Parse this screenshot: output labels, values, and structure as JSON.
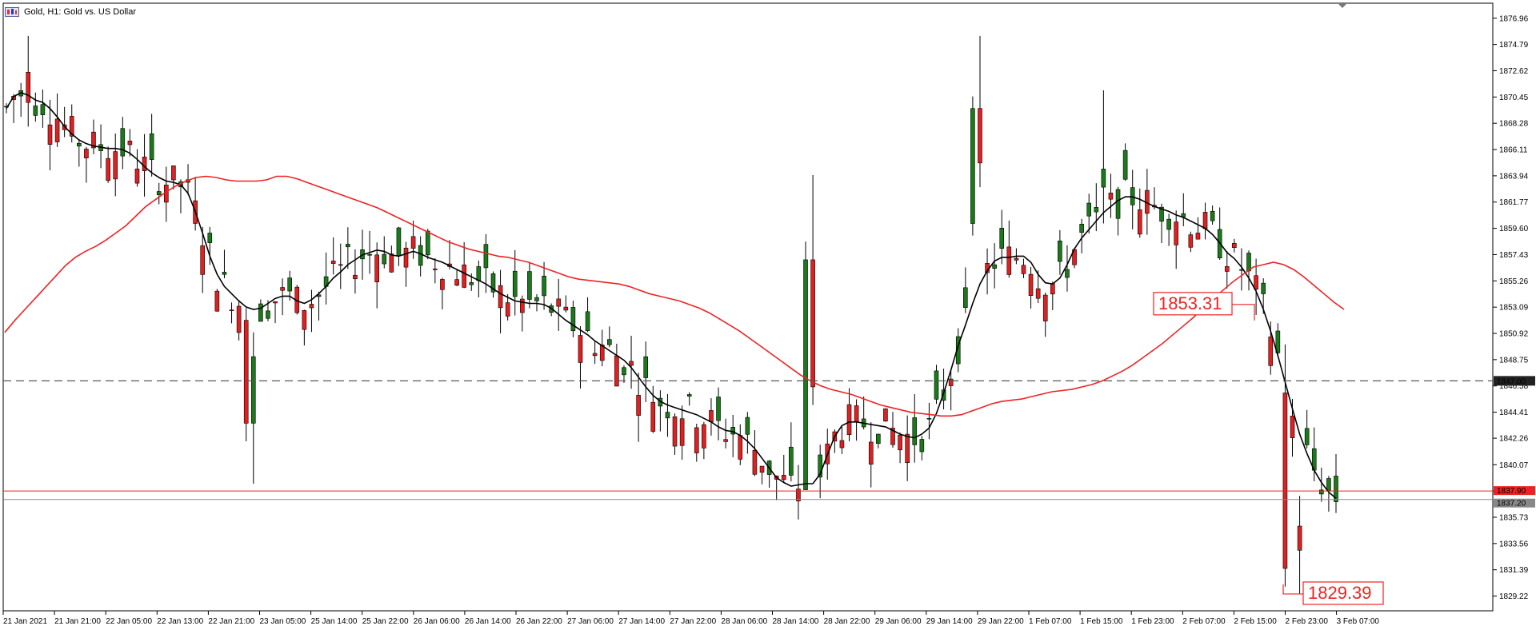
{
  "window": {
    "title": "Gold, H1:  Gold vs. US Dollar",
    "icon": "chart-window-icon"
  },
  "colors": {
    "background": "#ffffff",
    "bull_candle": "#1a7a1a",
    "bear_candle": "#e02020",
    "wick": "#000000",
    "ma_fast": "#000000",
    "ma_slow": "#ee2222",
    "level_line": "#555555",
    "bid_line": "#ee2222",
    "ask_line": "#888888",
    "axis": "#000000"
  },
  "axis": {
    "price_ticks": [
      "1876.96",
      "1874.79",
      "1872.62",
      "1870.45",
      "1868.28",
      "1866.11",
      "1863.94",
      "1861.77",
      "1859.60",
      "1857.43",
      "1855.26",
      "1853.09",
      "1850.92",
      "1848.75",
      "1846.58",
      "1844.41",
      "1842.26",
      "1840.07",
      "1837.90",
      "1835.73",
      "1833.56",
      "1831.39",
      "1829.22"
    ],
    "time_ticks": [
      "21 Jan 2021",
      "21 Jan 21:00",
      "22 Jan 05:00",
      "22 Jan 13:00",
      "22 Jan 21:00",
      "23 Jan 05:00",
      "25 Jan 14:00",
      "25 Jan 22:00",
      "26 Jan 06:00",
      "26 Jan 14:00",
      "26 Jan 22:00",
      "27 Jan 06:00",
      "27 Jan 14:00",
      "27 Jan 22:00",
      "28 Jan 06:00",
      "28 Jan 14:00",
      "28 Jan 22:00",
      "29 Jan 06:00",
      "29 Jan 14:00",
      "29 Jan 22:00",
      "1 Feb 07:00",
      "1 Feb 15:00",
      "1 Feb 23:00",
      "2 Feb 07:00",
      "2 Feb 15:00",
      "2 Feb 23:00",
      "3 Feb 07:00"
    ],
    "ylim": [
      1828.0,
      1878.2
    ]
  },
  "levels": {
    "horizontal_level": {
      "price": 1847.0,
      "label": "1847.00"
    },
    "bid": {
      "price": 1837.9,
      "label": "1837.90"
    },
    "ask": {
      "price": 1837.2,
      "label": "1837.20"
    }
  },
  "annotations": [
    {
      "label": "1853.31",
      "price": 1853.31
    },
    {
      "label": "1829.39",
      "price": 1829.39
    }
  ],
  "chart_data": {
    "type": "candlestick",
    "title": "Gold, H1:  Gold vs. US Dollar",
    "symbol": "Gold",
    "timeframe": "H1",
    "grid": false,
    "series": [
      {
        "name": "",
        "kind": "moving-average",
        "values": [
          1869.5,
          1870.5,
          1870.8,
          1870.6,
          1870.2,
          1870.0,
          1869.5,
          1868.8,
          1868.0,
          1867.4,
          1866.9,
          1866.6,
          1866.4,
          1866.3,
          1866.2,
          1866.2,
          1866.1,
          1865.8,
          1865.3,
          1864.7,
          1864.2,
          1863.8,
          1863.5,
          1863.4,
          1863.2,
          1862.5,
          1861.0,
          1859.2,
          1857.3,
          1855.8,
          1854.8,
          1854.2,
          1853.6,
          1853.1,
          1852.9,
          1853.0,
          1853.4,
          1853.8,
          1854.0,
          1854.0,
          1853.6,
          1853.4,
          1853.7,
          1854.2,
          1854.8,
          1855.5,
          1856.0,
          1856.6,
          1857.0,
          1857.4,
          1857.6,
          1857.8,
          1857.7,
          1857.4,
          1857.3,
          1857.5,
          1857.7,
          1857.5,
          1857.2,
          1857.0,
          1856.8,
          1856.5,
          1856.2,
          1855.9,
          1855.6,
          1855.3,
          1855.0,
          1854.6,
          1854.2,
          1853.9,
          1853.6,
          1853.5,
          1853.4,
          1853.4,
          1853.3,
          1853.0,
          1852.5,
          1852.0,
          1851.6,
          1851.2,
          1850.8,
          1850.3,
          1849.9,
          1849.5,
          1849.1,
          1848.7,
          1848.1,
          1847.3,
          1846.5,
          1845.8,
          1845.3,
          1845.0,
          1844.8,
          1844.6,
          1844.4,
          1844.2,
          1843.9,
          1843.6,
          1843.2,
          1842.9,
          1842.8,
          1842.5,
          1842.0,
          1841.4,
          1840.6,
          1839.8,
          1839.0,
          1838.6,
          1838.3,
          1838.4,
          1838.5,
          1838.5,
          1839.3,
          1840.9,
          1842.4,
          1843.3,
          1843.6,
          1843.6,
          1843.5,
          1843.4,
          1843.3,
          1843.2,
          1842.9,
          1842.6,
          1842.4,
          1842.3,
          1842.6,
          1843.1,
          1844.3,
          1846.0,
          1847.9,
          1849.9,
          1851.6,
          1853.4,
          1855.0,
          1856.1,
          1856.9,
          1857.2,
          1857.2,
          1857.3,
          1857.3,
          1856.8,
          1855.8,
          1855.1,
          1855.0,
          1855.5,
          1856.6,
          1857.9,
          1858.8,
          1859.5,
          1860.2,
          1860.9,
          1861.4,
          1861.9,
          1862.2,
          1862.2,
          1862.0,
          1861.7,
          1861.4,
          1861.2,
          1861.0,
          1860.7,
          1860.5,
          1860.2,
          1859.9,
          1859.6,
          1859.1,
          1858.4,
          1857.6,
          1857.1,
          1856.4,
          1855.5,
          1854.4,
          1852.9,
          1851.1,
          1849.1,
          1846.9,
          1844.7,
          1842.6,
          1841.0,
          1839.6,
          1838.6,
          1837.8,
          1837.3
        ]
      },
      {
        "name": "",
        "kind": "moving-average",
        "values": [
          1851.0,
          1852.0,
          1852.9,
          1853.8,
          1854.7,
          1855.6,
          1856.5,
          1857.2,
          1857.7,
          1858.1,
          1858.6,
          1859.2,
          1859.8,
          1860.6,
          1861.4,
          1862.0,
          1862.6,
          1863.1,
          1863.5,
          1863.8,
          1863.9,
          1863.8,
          1863.6,
          1863.5,
          1863.5,
          1863.5,
          1863.6,
          1863.9,
          1863.9,
          1863.7,
          1863.4,
          1863.1,
          1862.8,
          1862.5,
          1862.2,
          1861.9,
          1861.6,
          1861.3,
          1860.9,
          1860.5,
          1860.1,
          1859.7,
          1859.3,
          1858.9,
          1858.5,
          1858.2,
          1857.9,
          1857.7,
          1857.5,
          1857.3,
          1857.2,
          1857.0,
          1856.8,
          1856.5,
          1856.2,
          1855.9,
          1855.6,
          1855.4,
          1855.3,
          1855.2,
          1855.1,
          1855.0,
          1854.8,
          1854.5,
          1854.2,
          1854.0,
          1853.8,
          1853.6,
          1853.3,
          1853.0,
          1852.6,
          1852.1,
          1851.6,
          1851.1,
          1850.5,
          1849.9,
          1849.3,
          1848.7,
          1848.1,
          1847.5,
          1847.0,
          1846.6,
          1846.3,
          1846.1,
          1845.9,
          1845.6,
          1845.3,
          1845.0,
          1844.8,
          1844.6,
          1844.4,
          1844.3,
          1844.2,
          1844.1,
          1844.1,
          1844.2,
          1844.5,
          1844.8,
          1845.1,
          1845.3,
          1845.4,
          1845.5,
          1845.7,
          1845.9,
          1846.1,
          1846.2,
          1846.3,
          1846.5,
          1846.7,
          1847.0,
          1847.4,
          1847.8,
          1848.3,
          1848.9,
          1849.5,
          1850.1,
          1850.8,
          1851.5,
          1852.2,
          1853.0,
          1853.8,
          1854.5,
          1855.2,
          1855.8,
          1856.4,
          1856.6,
          1856.8,
          1856.6,
          1856.2,
          1855.6,
          1854.9,
          1854.2,
          1853.5,
          1852.9
        ]
      }
    ],
    "candles_summary": "H1 OHLC candles from 21 Jan 2021 to 3 Feb 2021 07:00; high ~1875.5, low ~1829.39"
  }
}
